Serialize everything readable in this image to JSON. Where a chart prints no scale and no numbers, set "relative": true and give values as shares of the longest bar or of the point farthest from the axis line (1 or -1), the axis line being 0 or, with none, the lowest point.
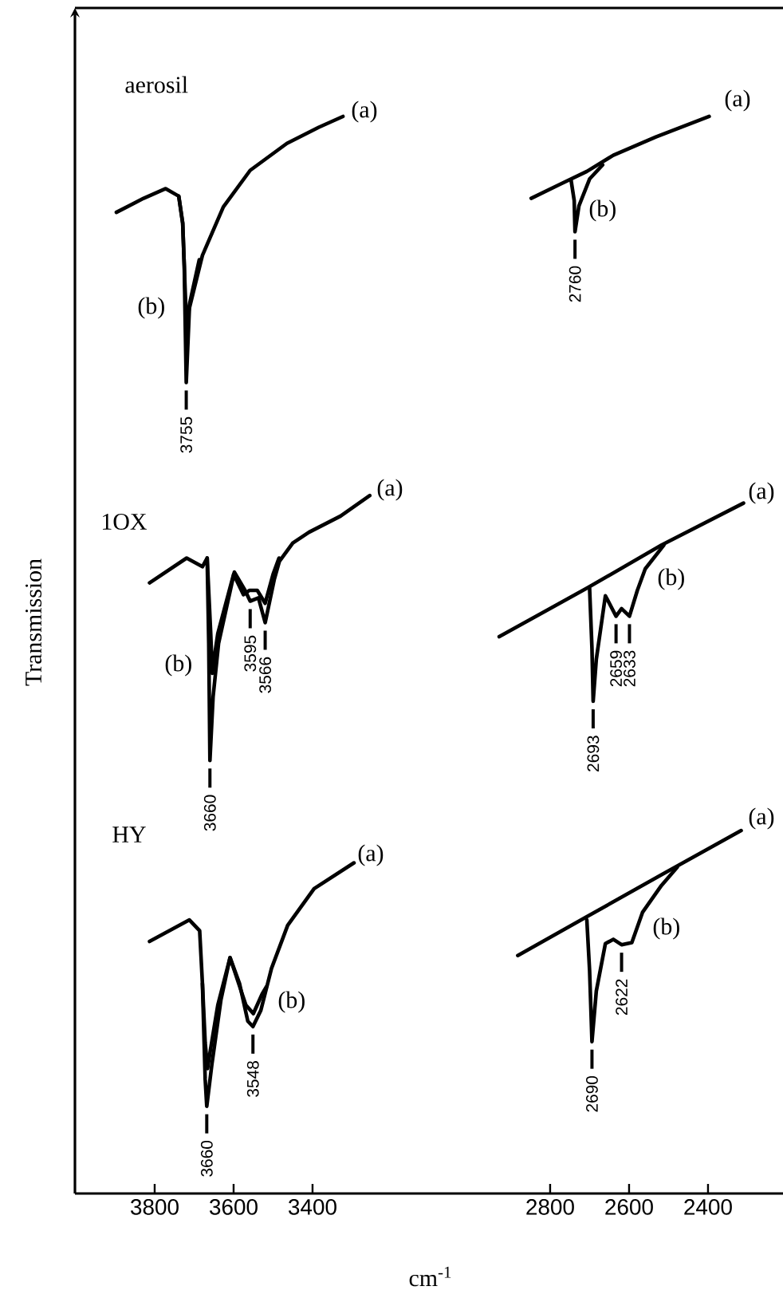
{
  "chart_data": [
    {
      "type": "line",
      "relative": true,
      "xlabel": "cm$^{-1}$",
      "ylabel": "Transmission",
      "xlim": [
        4002,
        3109
      ],
      "xticks": [
        3800,
        3600,
        3400
      ],
      "series": [
        {
          "color": "#000000",
          "x": [
            3897,
            3828,
            3772,
            3739,
            3729,
            3725,
            3723,
            3720,
            3712,
            3679,
            3626,
            3558,
            3465,
            3384,
            3323
          ],
          "values": [
            0.911,
            0.924,
            0.933,
            0.926,
            0.901,
            0.861,
            0.816,
            0.753,
            0.822,
            0.871,
            0.916,
            0.95,
            0.975,
            0.99,
            1.0
          ]
        },
        {
          "color": "#000000",
          "x": [
            3739,
            3729,
            3723,
            3719,
            3711,
            3687
          ],
          "values": [
            0.926,
            0.901,
            0.841,
            0.804,
            0.827,
            0.867
          ]
        },
        {
          "color": "#000000",
          "x": [
            3813,
            3719,
            3679,
            3667,
            3663,
            3660,
            3652,
            3638,
            3598,
            3571,
            3558,
            3537,
            3520,
            3497,
            3484,
            3450,
            3409,
            3329,
            3255
          ],
          "values": [
            0.567,
            0.59,
            0.582,
            0.59,
            0.511,
            0.402,
            0.461,
            0.511,
            0.577,
            0.56,
            0.55,
            0.553,
            0.53,
            0.57,
            0.587,
            0.604,
            0.614,
            0.629,
            0.648
          ]
        },
        {
          "color": "#000000",
          "x": [
            3667,
            3658,
            3654,
            3648,
            3640,
            3600,
            3575,
            3560,
            3540,
            3520,
            3500,
            3485
          ],
          "values": [
            0.59,
            0.52,
            0.483,
            0.5,
            0.52,
            0.575,
            0.556,
            0.56,
            0.56,
            0.548,
            0.575,
            0.59
          ]
        },
        {
          "color": "#000000",
          "x": [
            3813,
            3712,
            3686,
            3679,
            3672,
            3668,
            3655,
            3632,
            3609,
            3585,
            3564,
            3551,
            3531,
            3504,
            3463,
            3396,
            3295
          ],
          "values": [
            0.234,
            0.254,
            0.244,
            0.195,
            0.106,
            0.081,
            0.12,
            0.18,
            0.219,
            0.195,
            0.16,
            0.155,
            0.17,
            0.209,
            0.249,
            0.283,
            0.307
          ]
        },
        {
          "color": "#000000",
          "x": [
            3679,
            3672,
            3666,
            3658,
            3640,
            3609,
            3569,
            3550,
            3528,
            3517
          ],
          "values": [
            0.195,
            0.14,
            0.116,
            0.135,
            0.175,
            0.219,
            0.175,
            0.167,
            0.185,
            0.192
          ]
        }
      ],
      "annotations": [
        "aerosil",
        "(a)",
        "(b)",
        {
          "text": "3755",
          "x": 3720,
          "y": 0.753
        },
        "1OX",
        "(a)",
        "(b)",
        {
          "text": "3660",
          "x": 3660,
          "y": 0.402
        },
        {
          "text": "3595",
          "x": 3558,
          "y": 0.55
        },
        {
          "text": "3566",
          "x": 3520,
          "y": 0.53
        },
        "HY",
        "(a)",
        "(b)",
        {
          "text": "3660",
          "x": 3668,
          "y": 0.081
        },
        {
          "text": "3548",
          "x": 3551,
          "y": 0.155
        }
      ]
    },
    {
      "type": "line",
      "relative": true,
      "xlim": [
        3111,
        2210
      ],
      "xticks": [
        2800,
        2600,
        2400
      ],
      "series": [
        {
          "color": "#000000",
          "x": [
            2848,
            2775,
            2707,
            2640,
            2532,
            2397
          ],
          "values": [
            0.924,
            0.937,
            0.949,
            0.964,
            0.981,
            1.0
          ]
        },
        {
          "color": "#000000",
          "x": [
            2747,
            2739,
            2737,
            2727,
            2700,
            2667
          ],
          "values": [
            0.941,
            0.922,
            0.893,
            0.917,
            0.942,
            0.955
          ]
        },
        {
          "color": "#000000",
          "x": [
            2929,
            2707,
            2518,
            2310
          ],
          "values": [
            0.517,
            0.562,
            0.602,
            0.641
          ]
        },
        {
          "color": "#000000",
          "x": [
            2700,
            2694,
            2691,
            2683,
            2660,
            2633,
            2619,
            2599,
            2579,
            2559,
            2512
          ],
          "values": [
            0.562,
            0.506,
            0.457,
            0.496,
            0.555,
            0.536,
            0.543,
            0.536,
            0.56,
            0.58,
            0.602
          ]
        },
        {
          "color": "#000000",
          "x": [
            2882,
            2707,
            2518,
            2316
          ],
          "values": [
            0.221,
            0.257,
            0.296,
            0.337
          ]
        },
        {
          "color": "#000000",
          "x": [
            2707,
            2700,
            2694,
            2683,
            2660,
            2640,
            2619,
            2593,
            2566,
            2518,
            2478
          ],
          "values": [
            0.254,
            0.207,
            0.141,
            0.188,
            0.232,
            0.236,
            0.231,
            0.233,
            0.261,
            0.286,
            0.303
          ]
        }
      ],
      "annotations": [
        "(a)",
        "(b)",
        {
          "text": "2760",
          "x": 2737,
          "y": 0.893
        },
        "(a)",
        "(b)",
        {
          "text": "2693",
          "x": 2691,
          "y": 0.457
        },
        {
          "text": "2659",
          "x": 2633,
          "y": 0.536
        },
        {
          "text": "2633",
          "x": 2599,
          "y": 0.536
        },
        "(a)",
        "(b)",
        {
          "text": "2690",
          "x": 2694,
          "y": 0.141
        },
        {
          "text": "2622",
          "x": 2619,
          "y": 0.231
        }
      ]
    }
  ]
}
